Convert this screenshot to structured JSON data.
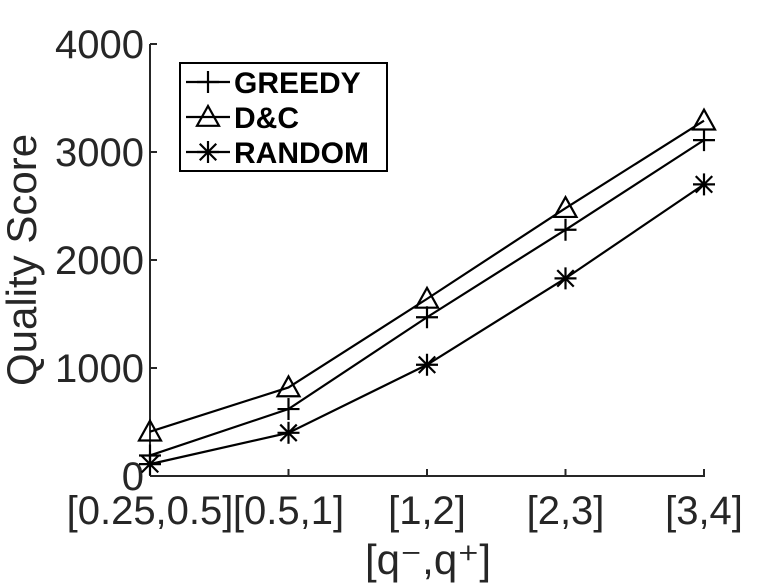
{
  "chart_data": {
    "type": "line",
    "title": "",
    "xlabel": "[q⁻,q⁺]",
    "ylabel": "Quality Score",
    "categories": [
      "[0.25,0.5]",
      "[0.5,1]",
      "[1,2]",
      "[2,3]",
      "[3,4]"
    ],
    "ylim": [
      0,
      4000
    ],
    "yticks": [
      0,
      1000,
      2000,
      3000,
      4000
    ],
    "grid": false,
    "legend_position": "top-left",
    "series": [
      {
        "name": "GREEDY",
        "marker": "plus",
        "values": [
          190,
          620,
          1470,
          2280,
          3110
        ]
      },
      {
        "name": "D&C",
        "marker": "triangle",
        "values": [
          410,
          820,
          1640,
          2480,
          3290
        ]
      },
      {
        "name": "RANDOM",
        "marker": "asterisk",
        "values": [
          110,
          400,
          1030,
          1830,
          2700
        ]
      }
    ],
    "colors": {
      "line": "#000000",
      "axis": "#262626"
    }
  }
}
